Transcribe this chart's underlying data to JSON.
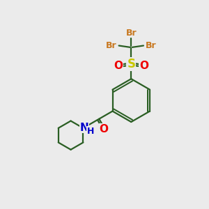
{
  "background_color": "#ebebeb",
  "bond_color": "#2a5e23",
  "bond_width": 1.6,
  "S_color": "#c8c800",
  "O_color": "#ee0000",
  "N_color": "#0000cc",
  "Br_color": "#c87820",
  "figsize": [
    3.0,
    3.0
  ],
  "dpi": 100,
  "xlim": [
    0,
    10
  ],
  "ylim": [
    0,
    10
  ]
}
